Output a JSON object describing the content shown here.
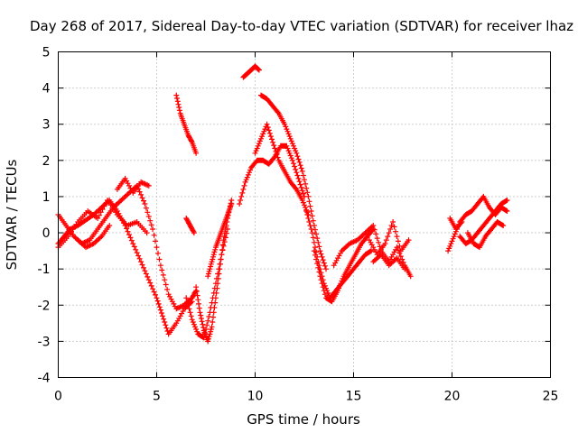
{
  "chart_data": {
    "type": "scatter",
    "title": "Day 268 of 2017, Sidereal Day-to-day VTEC variation (SDTVAR) for receiver lhaz",
    "xlabel": "GPS time / hours",
    "ylabel": "SDTVAR / TECUs",
    "xlim": [
      0,
      25
    ],
    "ylim": [
      -4,
      5
    ],
    "xticks": [
      "0",
      "5",
      "10",
      "15",
      "20",
      "25"
    ],
    "yticks": [
      "-4",
      "-3",
      "-2",
      "-1",
      "0",
      "1",
      "2",
      "3",
      "4",
      "5"
    ],
    "grid": true,
    "marker": "plus",
    "color": "#ff0000",
    "series": [
      {
        "x": [
          0.0,
          0.3,
          0.6,
          1.0,
          1.4,
          1.8,
          2.2,
          2.6,
          3.0,
          3.4,
          3.8,
          4.2,
          4.6,
          5.0,
          5.3,
          5.6,
          6.0,
          6.4,
          6.8
        ],
        "y": [
          -0.3,
          -0.1,
          0.1,
          0.2,
          0.35,
          0.5,
          0.7,
          0.9,
          0.6,
          0.2,
          -0.3,
          -0.8,
          -1.3,
          -1.8,
          -2.3,
          -2.8,
          -2.5,
          -2.1,
          -1.9
        ]
      },
      {
        "x": [
          0.0,
          0.4,
          0.8,
          1.2,
          1.6,
          2.0,
          2.4,
          2.8,
          3.2,
          3.6,
          4.0,
          4.4,
          4.8,
          5.2,
          5.6,
          6.0,
          6.4,
          6.8,
          7.0
        ],
        "y": [
          0.5,
          0.2,
          -0.1,
          -0.3,
          -0.2,
          0.1,
          0.4,
          0.7,
          0.9,
          1.1,
          1.3,
          0.8,
          0.1,
          -0.9,
          -1.7,
          -2.1,
          -2.0,
          -1.8,
          -1.6
        ]
      },
      {
        "x": [
          0.0,
          0.5,
          1.0,
          1.5,
          2.0,
          2.5,
          3.0,
          3.5,
          4.0,
          4.5
        ],
        "y": [
          -0.4,
          -0.1,
          0.3,
          0.6,
          0.4,
          0.9,
          0.5,
          0.2,
          0.3,
          0.0
        ]
      },
      {
        "x": [
          3.0,
          3.4,
          3.8,
          4.2,
          4.6
        ],
        "y": [
          1.2,
          1.5,
          1.1,
          1.4,
          1.3
        ]
      },
      {
        "x": [
          1.0,
          1.4,
          1.8,
          2.2,
          2.6
        ],
        "y": [
          -0.2,
          -0.4,
          -0.3,
          -0.1,
          0.2
        ]
      },
      {
        "x": [
          6.0,
          6.2,
          6.4,
          6.6,
          6.8,
          7.0
        ],
        "y": [
          3.8,
          3.3,
          3.0,
          2.7,
          2.5,
          2.2
        ]
      },
      {
        "x": [
          6.5,
          6.7,
          6.9
        ],
        "y": [
          0.4,
          0.2,
          0.0
        ]
      },
      {
        "x": [
          7.0,
          7.2,
          7.4,
          7.6,
          7.8,
          8.0,
          8.2,
          8.4,
          8.6,
          8.8
        ],
        "y": [
          -1.5,
          -2.2,
          -2.7,
          -3.0,
          -2.6,
          -1.8,
          -1.0,
          -0.2,
          0.4,
          0.9
        ]
      },
      {
        "x": [
          6.5,
          6.8,
          7.1,
          7.4,
          7.7,
          8.0,
          8.3,
          8.6
        ],
        "y": [
          -1.8,
          -2.4,
          -2.8,
          -2.9,
          -2.2,
          -1.4,
          -0.6,
          0.1
        ]
      },
      {
        "x": [
          7.6,
          7.8,
          8.0,
          8.2,
          8.4,
          8.6,
          8.8
        ],
        "y": [
          -1.2,
          -0.8,
          -0.4,
          -0.1,
          0.2,
          0.5,
          0.8
        ]
      },
      {
        "x": [
          9.4,
          9.6,
          9.8,
          10.0,
          10.2
        ],
        "y": [
          4.3,
          4.4,
          4.5,
          4.6,
          4.5
        ]
      },
      {
        "x": [
          9.2,
          9.5,
          9.8,
          10.1,
          10.4,
          10.7,
          11.0,
          11.3,
          11.6,
          11.9,
          12.2,
          12.5
        ],
        "y": [
          0.8,
          1.4,
          1.8,
          2.0,
          2.0,
          1.9,
          2.1,
          2.4,
          2.4,
          2.0,
          1.5,
          1.0
        ]
      },
      {
        "x": [
          10.0,
          10.3,
          10.6,
          10.9,
          11.2,
          11.5,
          11.8,
          12.1,
          12.4,
          12.7
        ],
        "y": [
          2.2,
          2.6,
          3.0,
          2.5,
          2.0,
          1.7,
          1.4,
          1.2,
          0.9,
          0.5
        ]
      },
      {
        "x": [
          10.3,
          10.6,
          10.9,
          11.2,
          11.5,
          11.8,
          12.1,
          12.4,
          12.7,
          13.0,
          13.3,
          13.6
        ],
        "y": [
          3.8,
          3.7,
          3.5,
          3.3,
          3.0,
          2.6,
          2.2,
          1.7,
          1.0,
          0.2,
          -0.5,
          -1.0
        ]
      },
      {
        "x": [
          12.6,
          12.9,
          13.2,
          13.5,
          13.8,
          14.1,
          14.4,
          14.7,
          15.0,
          15.3,
          15.6,
          15.9
        ],
        "y": [
          0.6,
          0.0,
          -0.8,
          -1.4,
          -1.8,
          -1.6,
          -1.4,
          -1.2,
          -1.0,
          -0.8,
          -0.6,
          -0.5
        ]
      },
      {
        "x": [
          13.0,
          13.3,
          13.6,
          13.9,
          14.2,
          14.5,
          14.8,
          15.1,
          15.4,
          15.7,
          16.0
        ],
        "y": [
          -0.5,
          -1.2,
          -1.8,
          -1.9,
          -1.6,
          -1.2,
          -0.9,
          -0.6,
          -0.3,
          -0.1,
          0.1
        ]
      },
      {
        "x": [
          14.0,
          14.4,
          14.8,
          15.2,
          15.6,
          16.0,
          16.4,
          16.8,
          17.2,
          17.6,
          17.9
        ],
        "y": [
          -0.9,
          -0.5,
          -0.3,
          -0.2,
          0.0,
          0.2,
          -0.5,
          -0.8,
          -0.4,
          -0.9,
          -1.2
        ]
      },
      {
        "x": [
          15.8,
          16.2,
          16.6,
          17.0,
          17.4,
          17.8
        ],
        "y": [
          -0.2,
          -0.6,
          -0.3,
          0.3,
          -0.5,
          -0.2
        ]
      },
      {
        "x": [
          16.0,
          16.4,
          16.8,
          17.2,
          17.6
        ],
        "y": [
          -0.8,
          -0.6,
          -0.9,
          -0.7,
          -1.0
        ]
      },
      {
        "x": [
          19.8,
          20.1,
          20.4,
          20.7,
          21.0,
          21.3,
          21.6,
          21.9,
          22.2,
          22.5,
          22.8
        ],
        "y": [
          -0.5,
          -0.1,
          0.3,
          0.5,
          0.6,
          0.8,
          1.0,
          0.7,
          0.5,
          0.7,
          0.6
        ]
      },
      {
        "x": [
          20.4,
          20.7,
          21.0,
          21.3,
          21.6,
          21.9,
          22.2,
          22.5,
          22.8
        ],
        "y": [
          -0.1,
          -0.3,
          -0.2,
          0.0,
          0.2,
          0.4,
          0.6,
          0.8,
          0.9
        ]
      },
      {
        "x": [
          20.8,
          21.1,
          21.4,
          21.7,
          22.0,
          22.3,
          22.6
        ],
        "y": [
          0.0,
          -0.3,
          -0.4,
          -0.1,
          0.1,
          0.3,
          0.2
        ]
      },
      {
        "x": [
          19.9,
          20.2,
          20.5
        ],
        "y": [
          0.4,
          0.1,
          0.3
        ]
      }
    ]
  }
}
